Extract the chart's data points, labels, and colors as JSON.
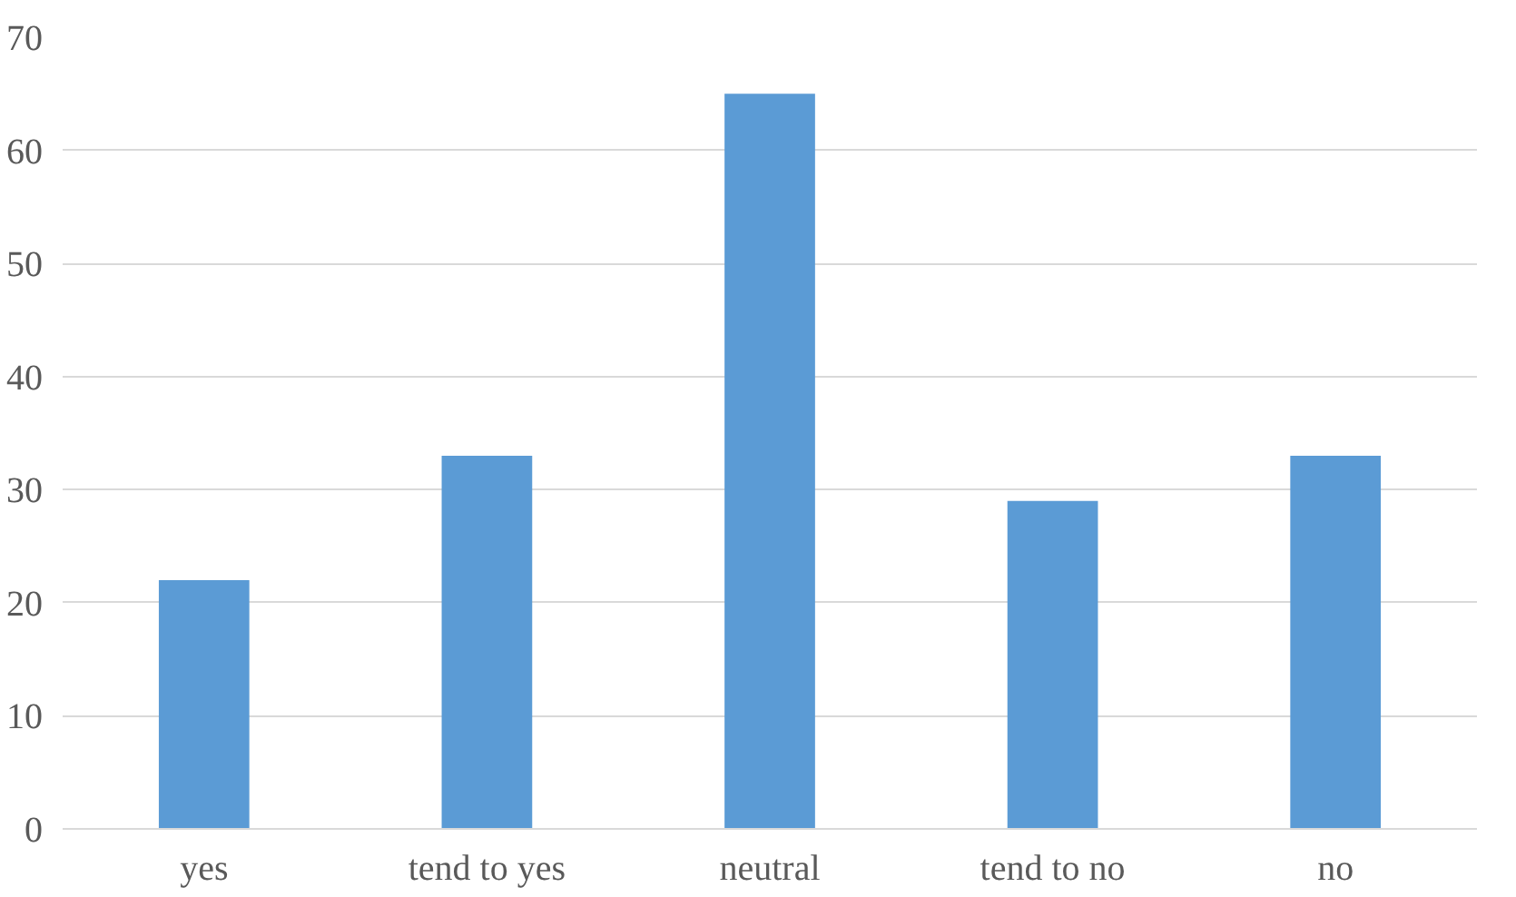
{
  "chart_data": {
    "type": "bar",
    "categories": [
      "yes",
      "tend to yes",
      "neutral",
      "tend to no",
      "no"
    ],
    "values": [
      22,
      33,
      65,
      29,
      33
    ],
    "color": "#5b9bd5",
    "ylim": [
      0,
      70
    ],
    "yticks": [
      0,
      10,
      20,
      30,
      40,
      50,
      60,
      70
    ],
    "grid": "y"
  }
}
